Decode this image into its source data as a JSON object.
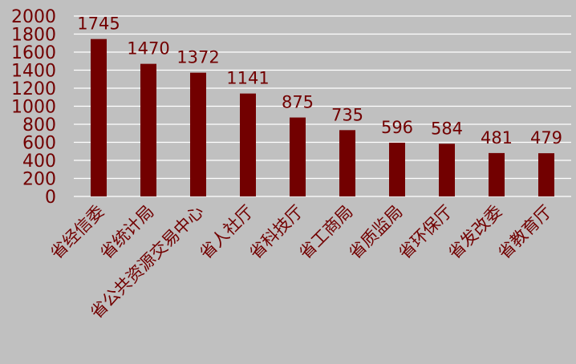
{
  "chart_data": {
    "type": "bar",
    "title": "",
    "xlabel": "",
    "ylabel": "",
    "categories": [
      "省经信委",
      "省统计局",
      "省公共资源交易中心",
      "省人社厅",
      "省科技厅",
      "省工商局",
      "省质监局",
      "省环保厅",
      "省发改委",
      "省教育厅"
    ],
    "values": [
      1745,
      1470,
      1372,
      1141,
      875,
      735,
      596,
      584,
      481,
      479
    ],
    "ylim": [
      0,
      2000
    ],
    "yticks": [
      "0",
      "200",
      "400",
      "600",
      "800",
      "1000",
      "1200",
      "1400",
      "1600",
      "1800",
      "2000"
    ],
    "grid": true,
    "legend": "none"
  },
  "colors": {
    "background": "#c0c0c0",
    "bar": "#720000",
    "text": "#720000",
    "grid": "#ffffff"
  }
}
